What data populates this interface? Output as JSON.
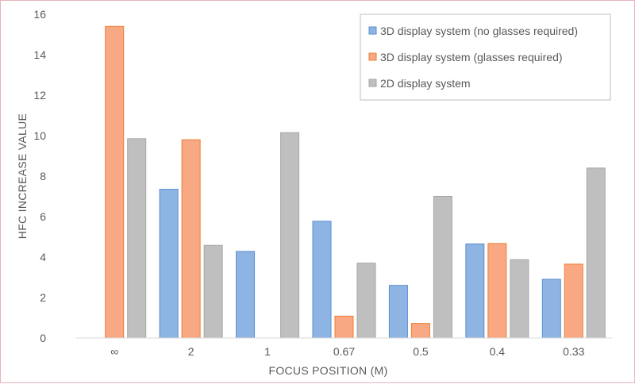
{
  "chart_data": {
    "type": "bar",
    "title": "",
    "xlabel": "FOCUS POSITION (M)",
    "ylabel": "HFC INCREASE VALUE",
    "ylim": [
      0,
      16
    ],
    "yticks": [
      0,
      2,
      4,
      6,
      8,
      10,
      12,
      14,
      16
    ],
    "categories": [
      "∞",
      "2",
      "1",
      "0.67",
      "0.5",
      "0.4",
      "0.33"
    ],
    "series": [
      {
        "name": "3D display system (no glasses required)",
        "color": "#8eb4e3",
        "stroke": "#5b8fd0",
        "values": [
          0,
          7.35,
          4.28,
          5.77,
          2.6,
          4.65,
          2.9
        ]
      },
      {
        "name": "3D display system (glasses required)",
        "color": "#f8a984",
        "stroke": "#ed7d31",
        "values": [
          15.4,
          9.8,
          0,
          1.08,
          0.72,
          4.67,
          3.65
        ]
      },
      {
        "name": "2D display system",
        "color": "#bfbfbf",
        "stroke": "#a6a6a6",
        "values": [
          9.85,
          4.58,
          10.15,
          3.7,
          7.0,
          3.87,
          8.4
        ]
      }
    ],
    "grid": false,
    "legend_position": "top-right"
  }
}
